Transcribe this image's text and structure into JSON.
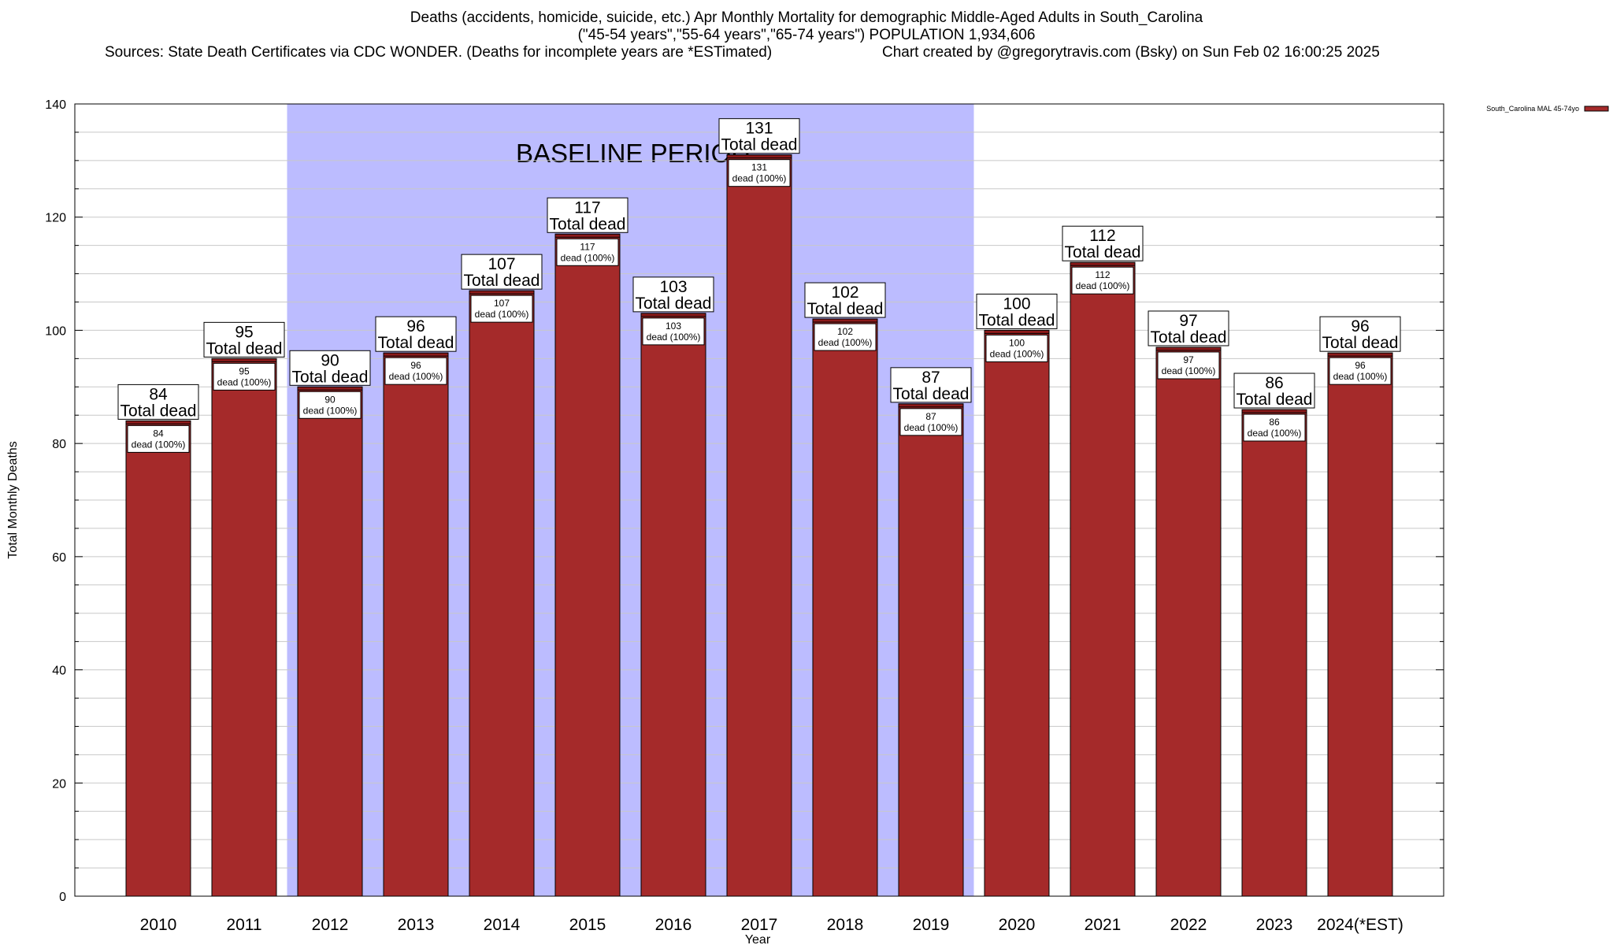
{
  "header": {
    "title_line1": "Deaths (accidents, homicide, suicide, etc.) Apr Monthly Mortality for demographic Middle-Aged Adults in South_Carolina",
    "title_line2": "(\"45-54 years\",\"55-64 years\",\"65-74 years\") POPULATION 1,934,606",
    "sources": "Sources: State Death Certificates via CDC WONDER. (Deaths for incomplete years are *ESTimated)",
    "credit": "Chart created by @gregorytravis.com (Bsky) on Sun Feb 02 16:00:25 2025"
  },
  "chart_data": {
    "type": "bar",
    "xlabel": "Year",
    "ylabel": "Total Monthly Deaths",
    "ylim": [
      0,
      140
    ],
    "yticks": [
      0,
      20,
      40,
      60,
      80,
      100,
      120,
      140
    ],
    "grid": true,
    "categories": [
      "2010",
      "2011",
      "2012",
      "2013",
      "2014",
      "2015",
      "2016",
      "2017",
      "2018",
      "2019",
      "2020",
      "2021",
      "2022",
      "2023",
      "2024(*EST)"
    ],
    "series": [
      {
        "name": "South_Carolina MAL 45-74yo",
        "values": [
          84,
          95,
          90,
          96,
          107,
          117,
          103,
          131,
          102,
          87,
          100,
          112,
          97,
          86,
          96
        ]
      }
    ],
    "total_label_suffix": "Total dead",
    "inner_label_suffix": "dead (100%)",
    "baseline_period": {
      "label": "BASELINE PERIOD",
      "from": "2012",
      "to": "2019"
    },
    "legend_placement": "top-right",
    "colors": {
      "bar": "#a52a2a",
      "bar_cap": "#8b1a1a",
      "baseline": "#bcbcff",
      "grid": "#c8c8c8"
    }
  }
}
